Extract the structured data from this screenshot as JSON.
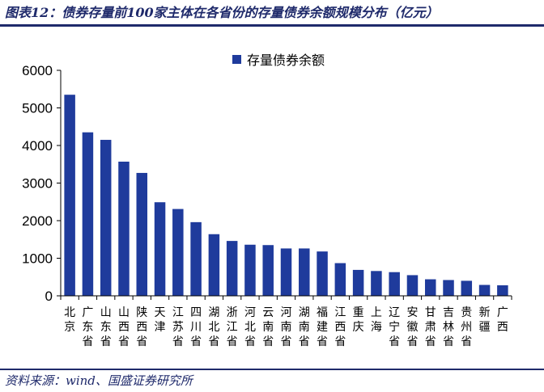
{
  "header": {
    "title": "图表12：债券存量前100家主体在各省份的存量债券余额规模分布（亿元）"
  },
  "footer": {
    "source": "资料来源：wind、国盛证券研究所"
  },
  "chart_data": {
    "type": "bar",
    "title": "",
    "xlabel": "",
    "ylabel": "",
    "ylim": [
      0,
      6000
    ],
    "yticks": [
      0,
      1000,
      2000,
      3000,
      4000,
      5000,
      6000
    ],
    "grid": false,
    "legend_position": "top-center",
    "bar_color": "#1f3b9c",
    "categories": [
      "北京",
      "广东省",
      "山东省",
      "山西省",
      "陕西省",
      "天津",
      "江苏省",
      "四川省",
      "湖北省",
      "浙江省",
      "河北省",
      "云南省",
      "河南省",
      "湖南省",
      "福建省",
      "江西省",
      "重庆",
      "上海",
      "辽宁省",
      "安徽省",
      "甘肃省",
      "吉林省",
      "贵州省",
      "新疆",
      "广西"
    ],
    "series": [
      {
        "name": "存量债券余额",
        "values": [
          5350,
          4350,
          4150,
          3570,
          3270,
          2490,
          2310,
          1960,
          1640,
          1460,
          1360,
          1350,
          1260,
          1260,
          1180,
          870,
          690,
          660,
          630,
          550,
          440,
          420,
          400,
          290,
          280
        ]
      }
    ]
  }
}
